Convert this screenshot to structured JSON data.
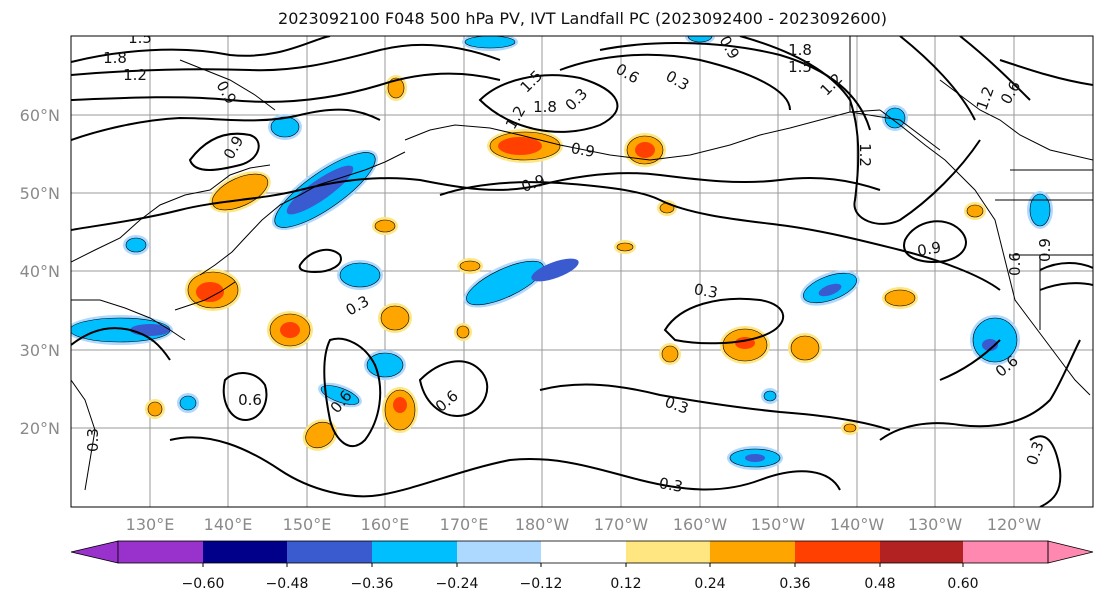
{
  "title": "2023092100 F048 500 hPa PV, IVT Landfall PC (2023092400 - 2023092600)",
  "lat_labels": [
    "60°N",
    "50°N",
    "40°N",
    "30°N",
    "20°N"
  ],
  "lon_labels": [
    "130°E",
    "140°E",
    "150°E",
    "160°E",
    "170°E",
    "180°W",
    "170°W",
    "160°W",
    "150°W",
    "140°W",
    "130°W",
    "120°W"
  ],
  "contour_labels": [
    "1.8",
    "1.5",
    "1.2",
    "0.9",
    "0.9",
    "1.2",
    "1.5",
    "1.8",
    "0.9",
    "0.6",
    "0.3",
    "1.2",
    "1.8",
    "1.5",
    "1.2",
    "0.9",
    "0.6",
    "0.3",
    "1.2",
    "0.9",
    "0.9",
    "0.6",
    "0.3",
    "0.3",
    "0.6",
    "0.6",
    "0.3",
    "0.6",
    "0.3",
    "0.3",
    "0.3",
    "0.6",
    "0.9"
  ],
  "colorbar": {
    "ticks": [
      "−0.60",
      "−0.48",
      "−0.36",
      "−0.24",
      "−0.12",
      "0.12",
      "0.24",
      "0.36",
      "0.48",
      "0.60"
    ],
    "colors": [
      "#9932cc",
      "#00008b",
      "#3a5bd0",
      "#00bfff",
      "#add8ff",
      "#ffffff",
      "#ffe680",
      "#ffa500",
      "#ff4000",
      "#b22222",
      "#ff88b0"
    ]
  },
  "fill_colors": {
    "neg_strong": "#3a5bd0",
    "neg_mid": "#00bfff",
    "neg_weak": "#add8ff",
    "pos_weak": "#ffe680",
    "pos_mid": "#ffa500",
    "pos_strong": "#ff4000"
  }
}
